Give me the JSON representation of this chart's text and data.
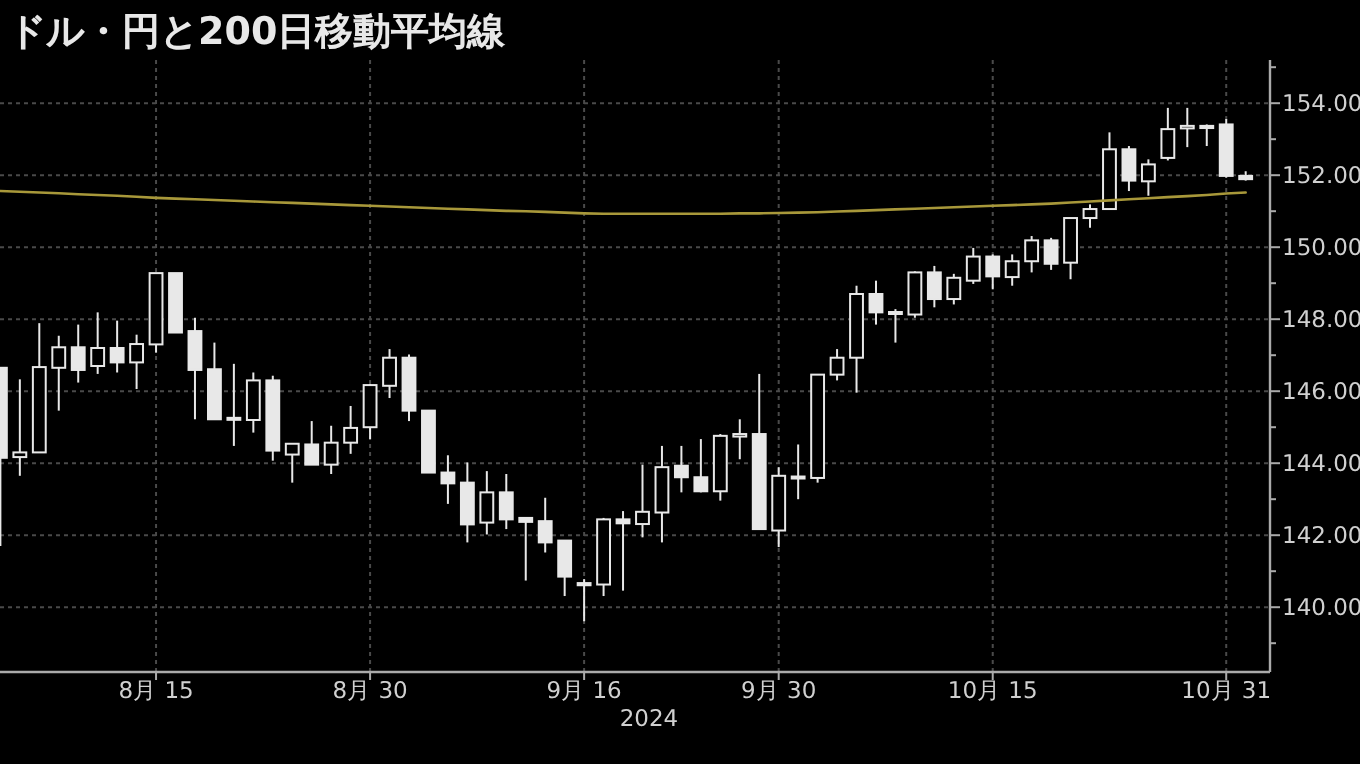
{
  "chart_data": {
    "type": "candlestick",
    "title": "ドル・円と200日移動平均線",
    "xlabel": "2024",
    "color": "#e8e8e8",
    "categories": [
      null,
      null,
      null,
      null,
      null,
      null,
      null,
      null,
      "8月 15",
      null,
      null,
      null,
      null,
      null,
      null,
      null,
      null,
      null,
      null,
      "8月 30",
      null,
      null,
      null,
      null,
      null,
      null,
      null,
      null,
      null,
      null,
      "9月 16",
      null,
      null,
      null,
      null,
      null,
      null,
      null,
      null,
      null,
      "9月 30",
      null,
      null,
      null,
      null,
      null,
      null,
      null,
      null,
      null,
      null,
      "10月 15",
      null,
      null,
      null,
      null,
      null,
      null,
      null,
      null,
      null,
      null,
      null,
      "10月 31",
      null
    ],
    "ohlc": [
      [
        146.65,
        146.65,
        141.7,
        144.15
      ],
      [
        144.17,
        146.33,
        143.65,
        144.3
      ],
      [
        144.3,
        147.89,
        144.3,
        146.67
      ],
      [
        146.65,
        147.54,
        145.46,
        147.22
      ],
      [
        147.22,
        147.85,
        146.24,
        146.59
      ],
      [
        146.7,
        148.19,
        146.48,
        147.2
      ],
      [
        147.2,
        147.96,
        146.52,
        146.8
      ],
      [
        146.8,
        147.57,
        146.06,
        147.31
      ],
      [
        147.3,
        149.28,
        147.07,
        149.28
      ],
      [
        149.28,
        149.28,
        147.63,
        147.63
      ],
      [
        147.67,
        148.04,
        145.22,
        146.59
      ],
      [
        146.61,
        147.35,
        145.22,
        145.22
      ],
      [
        145.26,
        146.76,
        144.48,
        145.22
      ],
      [
        145.2,
        146.52,
        144.85,
        146.3
      ],
      [
        146.3,
        146.43,
        144.07,
        144.35
      ],
      [
        144.24,
        144.54,
        143.46,
        144.54
      ],
      [
        144.52,
        145.17,
        143.96,
        143.96
      ],
      [
        143.96,
        145.04,
        143.7,
        144.57
      ],
      [
        144.57,
        145.59,
        144.26,
        144.98
      ],
      [
        145.0,
        146.2,
        144.67,
        146.17
      ],
      [
        146.15,
        147.17,
        145.81,
        146.93
      ],
      [
        146.93,
        147.02,
        145.17,
        145.46
      ],
      [
        145.46,
        145.46,
        143.74,
        143.74
      ],
      [
        143.74,
        144.22,
        142.87,
        143.44
      ],
      [
        143.46,
        144.02,
        141.8,
        142.3
      ],
      [
        142.35,
        143.78,
        142.02,
        143.19
      ],
      [
        143.19,
        143.7,
        142.17,
        142.44
      ],
      [
        142.48,
        142.48,
        140.74,
        142.37
      ],
      [
        142.39,
        143.04,
        141.52,
        141.8
      ],
      [
        141.85,
        141.85,
        140.31,
        140.85
      ],
      [
        140.67,
        140.78,
        139.61,
        140.61
      ],
      [
        140.63,
        142.48,
        140.31,
        142.44
      ],
      [
        142.44,
        142.67,
        140.46,
        142.33
      ],
      [
        142.31,
        143.96,
        141.94,
        142.65
      ],
      [
        142.63,
        144.48,
        141.8,
        143.89
      ],
      [
        143.93,
        144.48,
        143.19,
        143.61
      ],
      [
        143.61,
        144.67,
        143.19,
        143.22
      ],
      [
        143.22,
        144.81,
        142.96,
        144.76
      ],
      [
        144.74,
        145.22,
        144.11,
        144.81
      ],
      [
        144.81,
        146.48,
        142.17,
        142.17
      ],
      [
        142.13,
        143.89,
        141.67,
        143.65
      ],
      [
        143.59,
        144.52,
        143.0,
        143.63
      ],
      [
        143.59,
        146.46,
        143.46,
        146.46
      ],
      [
        146.46,
        147.17,
        146.3,
        146.93
      ],
      [
        146.93,
        148.93,
        145.96,
        148.7
      ],
      [
        148.7,
        149.07,
        147.85,
        148.19
      ],
      [
        148.2,
        148.28,
        147.35,
        148.15
      ],
      [
        148.13,
        149.33,
        148.04,
        149.3
      ],
      [
        149.3,
        149.48,
        148.33,
        148.56
      ],
      [
        148.56,
        149.26,
        148.41,
        149.15
      ],
      [
        149.07,
        149.98,
        148.98,
        149.74
      ],
      [
        149.74,
        149.8,
        148.83,
        149.19
      ],
      [
        149.17,
        149.8,
        148.93,
        149.61
      ],
      [
        149.61,
        150.31,
        149.3,
        150.19
      ],
      [
        150.19,
        150.26,
        149.37,
        149.54
      ],
      [
        149.57,
        150.81,
        149.11,
        150.81
      ],
      [
        150.81,
        151.19,
        150.54,
        151.06
      ],
      [
        151.06,
        153.19,
        151.06,
        152.72
      ],
      [
        152.72,
        152.81,
        151.56,
        151.85
      ],
      [
        151.83,
        152.44,
        151.43,
        152.3
      ],
      [
        152.48,
        153.87,
        152.41,
        153.28
      ],
      [
        153.3,
        153.87,
        152.78,
        153.37
      ],
      [
        153.37,
        153.41,
        152.81,
        153.31
      ],
      [
        153.41,
        153.56,
        151.93,
        151.98
      ],
      [
        151.98,
        152.11,
        151.85,
        151.89
      ]
    ],
    "series": [
      {
        "type": "line",
        "color": "#a8983a",
        "values": [
          151.56,
          151.54,
          151.52,
          151.5,
          151.47,
          151.45,
          151.43,
          151.4,
          151.37,
          151.35,
          151.33,
          151.31,
          151.29,
          151.27,
          151.25,
          151.23,
          151.21,
          151.19,
          151.17,
          151.15,
          151.13,
          151.11,
          151.09,
          151.07,
          151.05,
          151.03,
          151.01,
          151.0,
          150.98,
          150.96,
          150.94,
          150.93,
          150.93,
          150.93,
          150.93,
          150.93,
          150.93,
          150.93,
          150.94,
          150.94,
          150.95,
          150.96,
          150.97,
          150.99,
          151.01,
          151.03,
          151.05,
          151.07,
          151.09,
          151.11,
          151.13,
          151.15,
          151.17,
          151.19,
          151.21,
          151.24,
          151.27,
          151.3,
          151.33,
          151.36,
          151.39,
          151.42,
          151.45,
          151.49,
          151.52
        ]
      }
    ],
    "ylim": [
      138.2,
      155.2
    ],
    "yticks": [
      {
        "value": 139,
        "label": null
      },
      {
        "value": 140,
        "label": "140.00"
      },
      {
        "value": 141,
        "label": null
      },
      {
        "value": 142,
        "label": "142.00"
      },
      {
        "value": 143,
        "label": null
      },
      {
        "value": 144,
        "label": "144.00"
      },
      {
        "value": 145,
        "label": null
      },
      {
        "value": 146,
        "label": "146.00"
      },
      {
        "value": 147,
        "label": null
      },
      {
        "value": 148,
        "label": "148.00"
      },
      {
        "value": 149,
        "label": null
      },
      {
        "value": 150,
        "label": "150.00"
      },
      {
        "value": 151,
        "label": null
      },
      {
        "value": 152,
        "label": "152.00"
      },
      {
        "value": 153,
        "label": null
      },
      {
        "value": 154,
        "label": "154.00"
      },
      {
        "value": 155,
        "label": null
      }
    ],
    "grid": true
  }
}
